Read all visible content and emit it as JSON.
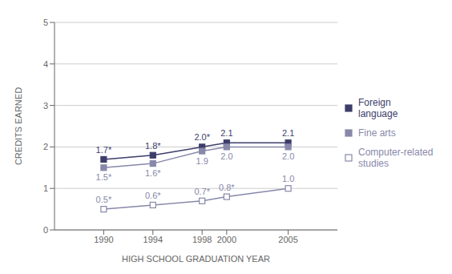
{
  "chart_data": {
    "type": "line",
    "x": [
      1990,
      1994,
      1998,
      2000,
      2005
    ],
    "xlim": [
      1986,
      2009
    ],
    "xticks": [
      1990,
      1994,
      1998,
      2000,
      2005
    ],
    "ylim": [
      0,
      5
    ],
    "yticks": [
      0,
      1,
      2,
      3,
      4,
      5
    ],
    "xlabel": "HIGH SCHOOL GRADUATION YEAR",
    "ylabel": "CREDITS EARNED",
    "grid": true,
    "legend": "right",
    "data_labels": true,
    "series": [
      {
        "name": "Foreign\nlanguage",
        "color": "#3d3d6b",
        "marker": "square",
        "values": [
          1.7,
          1.8,
          2.0,
          2.1,
          2.1
        ],
        "value_labels": [
          "1.7*",
          "1.8*",
          "2.0*",
          "2.1",
          "2.1"
        ]
      },
      {
        "name": "Fine arts",
        "color": "#8888aa",
        "marker": "square",
        "values": [
          1.5,
          1.6,
          1.9,
          2.0,
          2.0
        ],
        "value_labels": [
          "1.5*",
          "1.6*",
          "1.9",
          "2.0",
          "2.0"
        ]
      },
      {
        "name": "Computer-related\nstudies",
        "color": "#8888aa",
        "marker": "open_square",
        "values": [
          0.5,
          0.6,
          0.7,
          0.8,
          1.0
        ],
        "value_labels": [
          "0.5*",
          "0.6*",
          "0.7*",
          "0.8*",
          "1.0"
        ]
      }
    ]
  }
}
